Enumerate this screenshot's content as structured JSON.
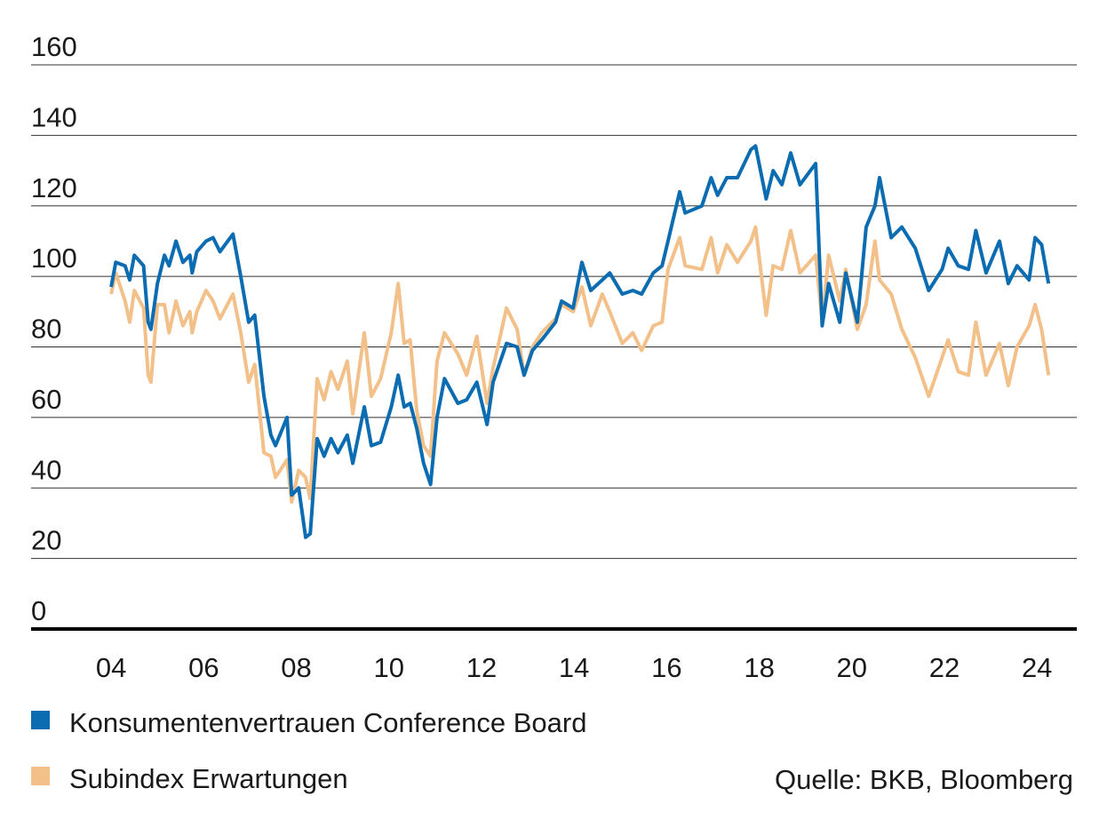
{
  "chart_data": {
    "type": "line",
    "x": [
      4.0,
      4.1,
      4.3,
      4.4,
      4.5,
      4.7,
      4.8,
      4.86,
      5.0,
      5.15,
      5.25,
      5.4,
      5.55,
      5.7,
      5.75,
      5.85,
      6.05,
      6.2,
      6.35,
      6.63,
      6.8,
      6.97,
      7.1,
      7.3,
      7.45,
      7.55,
      7.8,
      7.9,
      8.05,
      8.2,
      8.3,
      8.45,
      8.6,
      8.75,
      8.9,
      9.1,
      9.22,
      9.47,
      9.62,
      9.82,
      10.05,
      10.2,
      10.33,
      10.46,
      10.6,
      10.75,
      10.9,
      11.04,
      11.2,
      11.49,
      11.68,
      11.9,
      12.12,
      12.25,
      12.54,
      12.77,
      12.92,
      13.1,
      13.3,
      13.6,
      13.73,
      13.98,
      14.17,
      14.36,
      14.61,
      14.77,
      15.04,
      15.27,
      15.46,
      15.71,
      15.9,
      16.03,
      16.28,
      16.4,
      16.76,
      16.96,
      17.1,
      17.3,
      17.53,
      17.82,
      17.92,
      18.15,
      18.3,
      18.49,
      18.68,
      18.88,
      19.22,
      19.36,
      19.5,
      19.74,
      19.87,
      20.12,
      20.31,
      20.5,
      20.6,
      20.85,
      21.08,
      21.37,
      21.66,
      21.95,
      22.08,
      22.3,
      22.52,
      22.68,
      22.9,
      23.19,
      23.38,
      23.57,
      23.83,
      23.96,
      24.1,
      24.25
    ],
    "series": [
      {
        "name": "Konsumentenvertrauen Conference Board",
        "color": "#0b6cb2",
        "values": [
          97,
          104,
          103,
          99,
          106,
          103,
          87,
          85,
          98,
          106,
          103,
          110,
          104,
          106,
          101,
          107,
          110,
          111,
          107,
          112,
          100,
          87,
          89,
          66,
          55,
          52,
          60,
          38,
          40,
          26,
          27,
          54,
          49,
          54,
          50,
          55,
          47,
          63,
          52,
          53,
          63,
          72,
          63,
          64,
          57,
          47,
          41,
          60,
          71,
          64,
          65,
          70,
          58,
          70,
          81,
          80,
          72,
          79,
          82,
          87,
          93,
          91,
          104,
          96,
          99,
          101,
          95,
          96,
          95,
          101,
          103,
          110,
          124,
          118,
          120,
          128,
          123,
          128,
          128,
          136,
          137,
          122,
          130,
          126,
          135,
          126,
          132,
          86,
          98,
          87,
          101,
          87,
          114,
          120,
          128,
          111,
          114,
          108,
          96,
          102,
          108,
          103,
          102,
          113,
          101,
          110,
          98,
          103,
          99,
          111,
          109,
          98
        ]
      },
      {
        "name": "Subindex Erwartungen",
        "color": "#f2c088",
        "values": [
          95,
          101,
          93,
          87,
          96,
          91,
          72,
          70,
          92,
          92,
          84,
          93,
          86,
          90,
          84,
          90,
          96,
          93,
          88,
          95,
          84,
          70,
          75,
          50,
          49,
          43,
          48,
          36,
          45,
          43,
          37,
          71,
          65,
          73,
          68,
          76,
          61,
          84,
          66,
          71,
          84,
          98,
          81,
          82,
          62,
          52,
          49,
          76,
          84,
          78,
          72,
          83,
          64,
          74,
          91,
          85,
          72,
          80,
          84,
          88,
          92,
          90,
          97,
          86,
          95,
          90,
          81,
          84,
          79,
          86,
          87,
          102,
          111,
          103,
          102,
          111,
          101,
          109,
          104,
          110,
          114,
          89,
          103,
          102,
          113,
          101,
          106,
          87,
          106,
          93,
          102,
          85,
          92,
          110,
          99,
          95,
          85,
          77,
          66,
          77,
          82,
          73,
          72,
          87,
          72,
          81,
          69,
          80,
          86,
          92,
          85,
          72
        ]
      }
    ],
    "xlim": [
      2.27,
      24.86
    ],
    "xticks": [
      {
        "value": 4,
        "label": "04"
      },
      {
        "value": 6,
        "label": "06"
      },
      {
        "value": 8,
        "label": "08"
      },
      {
        "value": 10,
        "label": "10"
      },
      {
        "value": 12,
        "label": "12"
      },
      {
        "value": 14,
        "label": "14"
      },
      {
        "value": 16,
        "label": "16"
      },
      {
        "value": 18,
        "label": "18"
      },
      {
        "value": 20,
        "label": "20"
      },
      {
        "value": 22,
        "label": "22"
      },
      {
        "value": 24,
        "label": "24"
      }
    ],
    "ylim": [
      0,
      160
    ],
    "yticks": [
      0,
      20,
      40,
      60,
      80,
      100,
      120,
      140,
      160
    ],
    "grid": true,
    "legend": "bottom-left",
    "source": "Quelle: BKB, Bloomberg"
  }
}
